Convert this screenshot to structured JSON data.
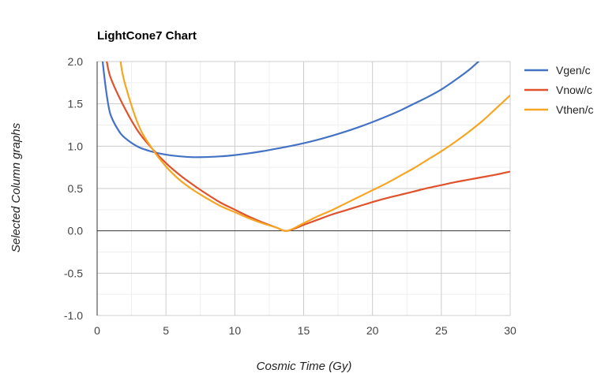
{
  "chart_data": {
    "type": "line",
    "title": "LightCone7 Chart",
    "xlabel": "Cosmic Time (Gy)",
    "ylabel": "Selected Column graphs",
    "xlim": [
      0,
      30
    ],
    "ylim": [
      -1.0,
      2.0
    ],
    "xticks": [
      0,
      5,
      10,
      15,
      20,
      25,
      30
    ],
    "yticks": [
      2.0,
      1.5,
      1.0,
      0.5,
      0.0,
      -0.5,
      -1.0
    ],
    "ytick_labels": [
      "2.0",
      "1.5",
      "1.0",
      "0.5",
      "0.0",
      "-0.5",
      "-1.0"
    ],
    "xtick_labels": [
      "0",
      "5",
      "10",
      "15",
      "20",
      "25",
      "30"
    ],
    "grid": true,
    "legend_position": "right",
    "series": [
      {
        "name": "Vgen/c",
        "color": "#4472C4",
        "x": [
          0.4,
          0.6,
          0.8,
          1.0,
          1.5,
          2.0,
          3.0,
          4.0,
          5.0,
          6.0,
          7.0,
          8.0,
          9.0,
          10.0,
          11.0,
          12.0,
          13.0,
          14.0,
          15.0,
          16.0,
          17.0,
          18.0,
          19.0,
          20.0,
          21.0,
          22.0,
          23.0,
          24.0,
          25.0,
          26.0,
          27.0,
          27.7
        ],
        "y": [
          2.0,
          1.72,
          1.5,
          1.36,
          1.2,
          1.1,
          0.99,
          0.935,
          0.9,
          0.88,
          0.87,
          0.872,
          0.88,
          0.895,
          0.915,
          0.94,
          0.97,
          1.0,
          1.035,
          1.075,
          1.12,
          1.17,
          1.225,
          1.285,
          1.35,
          1.42,
          1.5,
          1.58,
          1.67,
          1.78,
          1.9,
          2.0
        ]
      },
      {
        "name": "Vnow/c",
        "color": "#E0522C",
        "x": [
          0.7,
          1.0,
          2.0,
          3.0,
          4.0,
          5.0,
          6.0,
          7.0,
          8.0,
          9.0,
          10.0,
          11.0,
          12.0,
          13.0,
          13.8,
          15.0,
          16.0,
          17.0,
          18.0,
          19.0,
          20.0,
          21.0,
          22.0,
          23.0,
          24.0,
          25.0,
          26.0,
          27.0,
          28.0,
          29.0,
          30.0
        ],
        "y": [
          2.0,
          1.8,
          1.45,
          1.17,
          0.97,
          0.8,
          0.66,
          0.54,
          0.43,
          0.33,
          0.25,
          0.17,
          0.1,
          0.04,
          0.0,
          0.07,
          0.13,
          0.19,
          0.24,
          0.29,
          0.34,
          0.385,
          0.425,
          0.465,
          0.505,
          0.54,
          0.575,
          0.605,
          0.635,
          0.665,
          0.7
        ]
      },
      {
        "name": "Vthen/c",
        "color": "#F5A623",
        "x": [
          1.7,
          2.0,
          3.0,
          4.0,
          5.0,
          6.0,
          7.0,
          8.0,
          9.0,
          10.0,
          11.0,
          12.0,
          13.0,
          13.8,
          15.0,
          16.0,
          17.0,
          18.0,
          19.0,
          20.0,
          21.0,
          22.0,
          23.0,
          24.0,
          25.0,
          26.0,
          27.0,
          28.0,
          29.0,
          30.0
        ],
        "y": [
          2.0,
          1.75,
          1.25,
          0.97,
          0.76,
          0.6,
          0.48,
          0.38,
          0.29,
          0.22,
          0.15,
          0.09,
          0.04,
          0.0,
          0.09,
          0.17,
          0.24,
          0.32,
          0.4,
          0.48,
          0.56,
          0.65,
          0.74,
          0.84,
          0.94,
          1.05,
          1.17,
          1.3,
          1.45,
          1.6
        ]
      }
    ]
  }
}
